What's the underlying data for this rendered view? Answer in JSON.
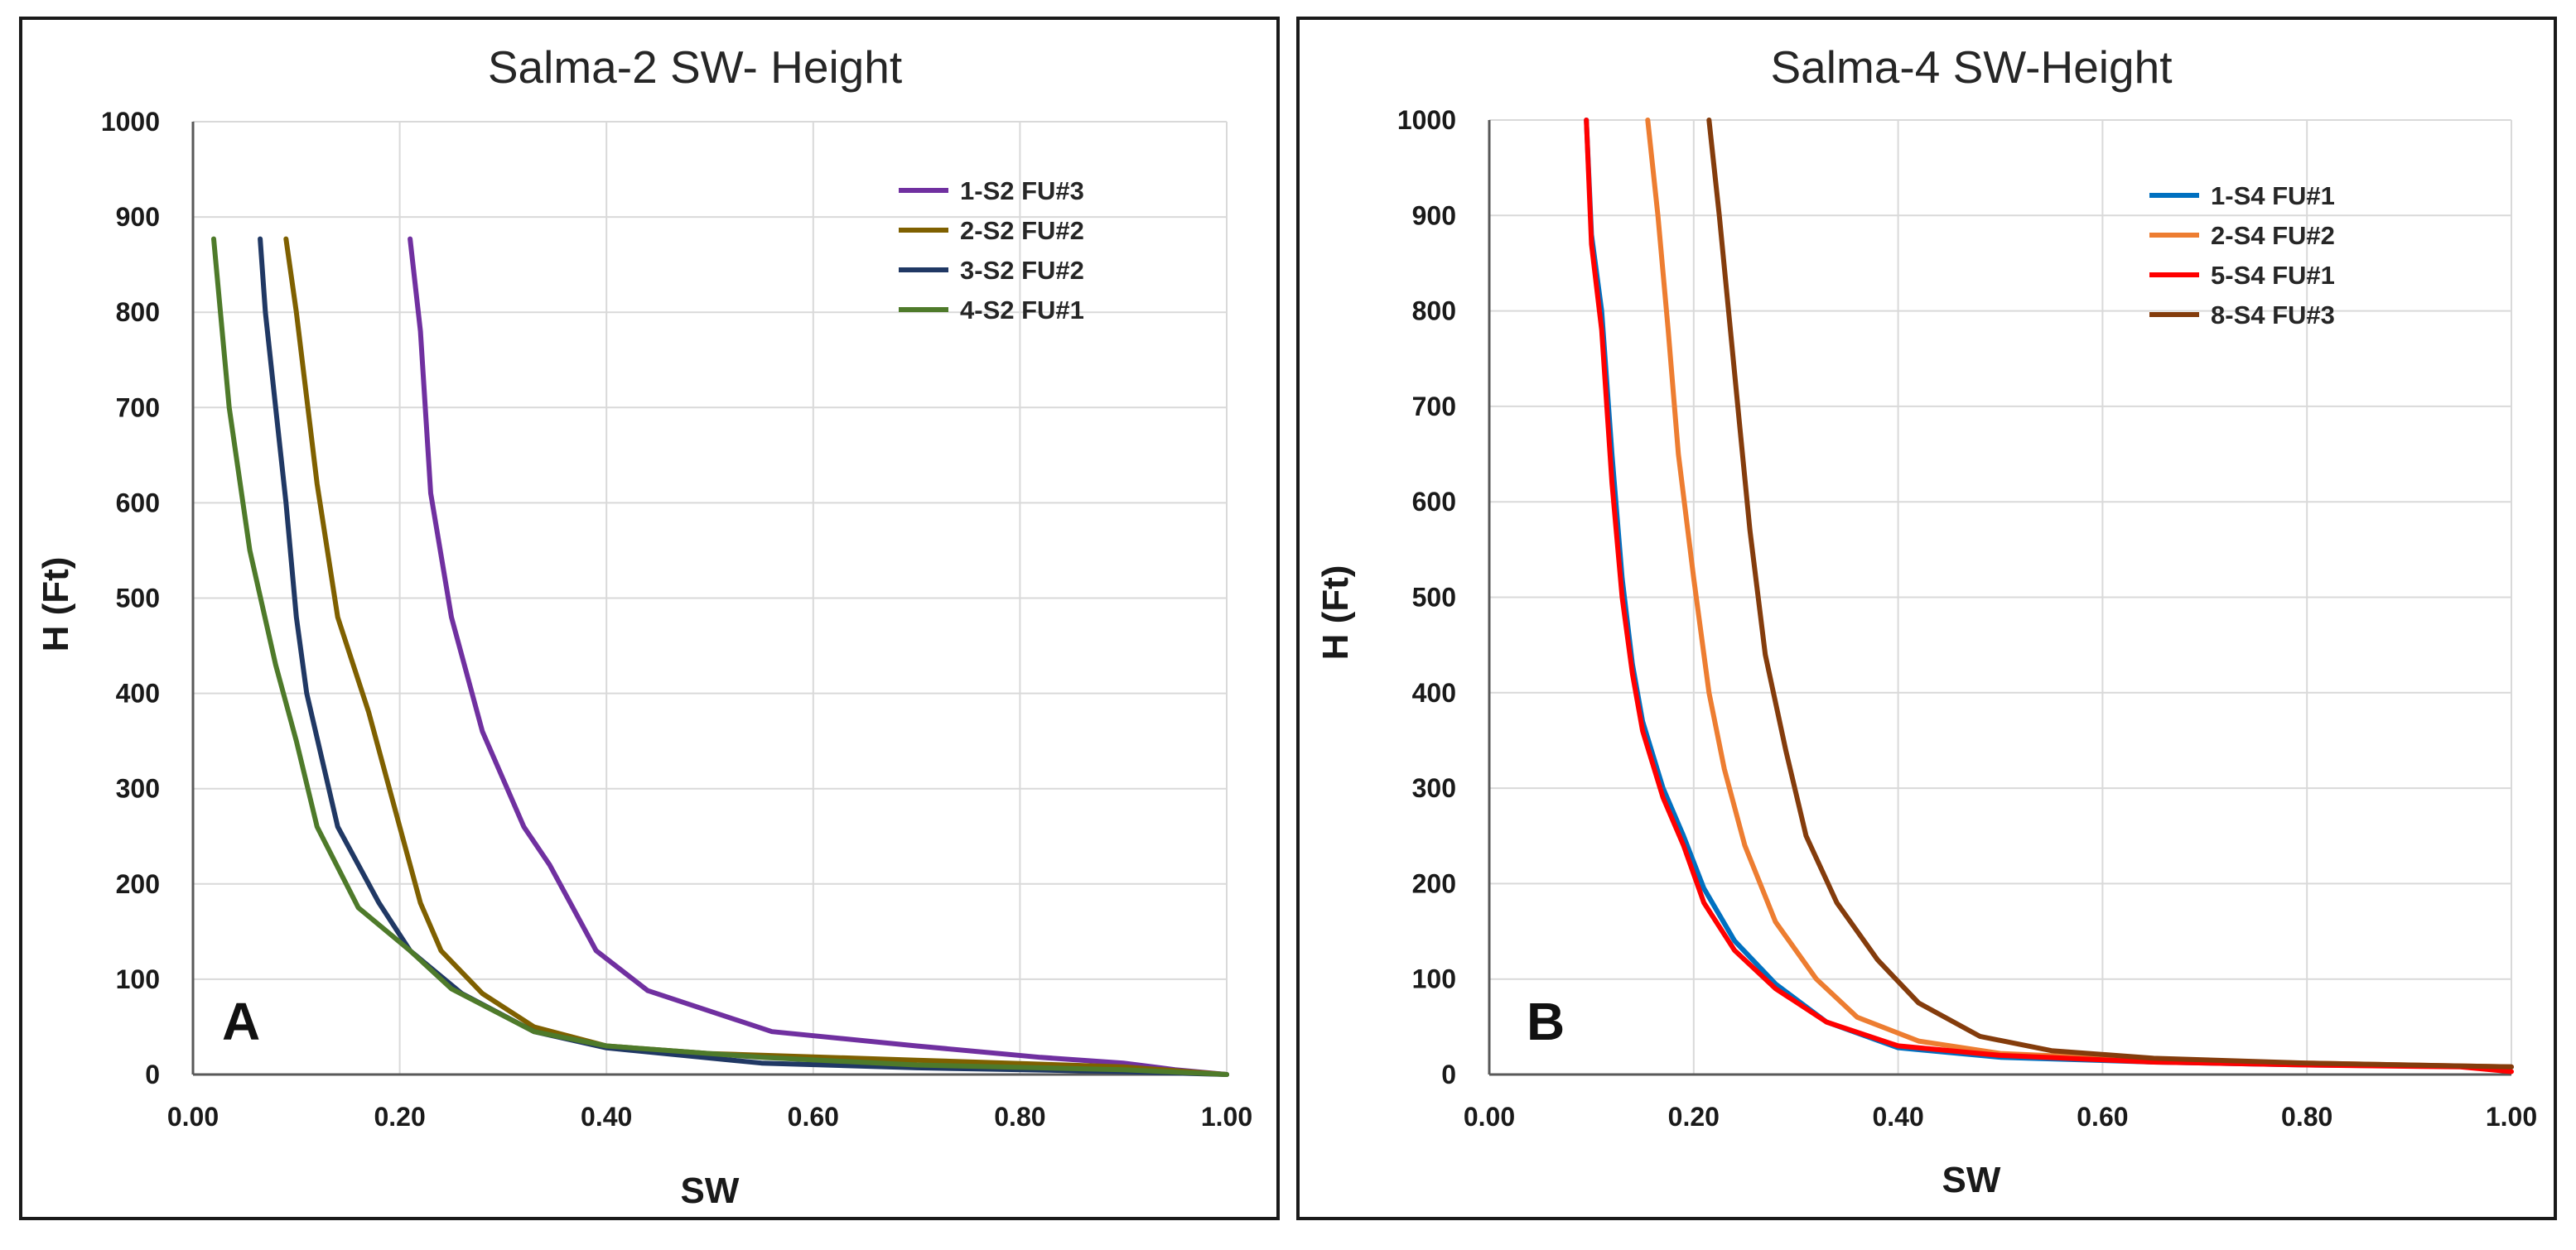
{
  "chart_data": [
    {
      "type": "line",
      "title": "Salma-2 SW- Height",
      "xlabel": "SW",
      "ylabel": "H (Ft)",
      "panel_label": "A",
      "xlim": [
        0,
        1
      ],
      "ylim": [
        0,
        1000
      ],
      "xticks": [
        "0.00",
        "0.20",
        "0.40",
        "0.60",
        "0.80",
        "1.00"
      ],
      "yticks": [
        "0",
        "100",
        "200",
        "300",
        "400",
        "500",
        "600",
        "700",
        "800",
        "900",
        "1000"
      ],
      "grid": true,
      "legend_position": "top-right",
      "series": [
        {
          "name": "1-S2 FU#3",
          "color": "#7030a0",
          "points": [
            [
              0.21,
              877
            ],
            [
              0.22,
              780
            ],
            [
              0.23,
              610
            ],
            [
              0.25,
              480
            ],
            [
              0.26,
              440
            ],
            [
              0.28,
              360
            ],
            [
              0.32,
              260
            ],
            [
              0.345,
              220
            ],
            [
              0.37,
              170
            ],
            [
              0.39,
              130
            ],
            [
              0.44,
              88
            ],
            [
              0.56,
              45
            ],
            [
              0.7,
              30
            ],
            [
              0.82,
              18
            ],
            [
              0.9,
              12
            ],
            [
              0.95,
              5
            ],
            [
              1.0,
              0
            ]
          ]
        },
        {
          "name": "2-S2 FU#2",
          "color": "#7f6000",
          "points": [
            [
              0.09,
              877
            ],
            [
              0.1,
              800
            ],
            [
              0.12,
              620
            ],
            [
              0.14,
              480
            ],
            [
              0.17,
              380
            ],
            [
              0.2,
              260
            ],
            [
              0.22,
              180
            ],
            [
              0.24,
              130
            ],
            [
              0.28,
              85
            ],
            [
              0.33,
              50
            ],
            [
              0.4,
              30
            ],
            [
              0.5,
              22
            ],
            [
              0.7,
              15
            ],
            [
              0.9,
              8
            ],
            [
              1.0,
              0
            ]
          ]
        },
        {
          "name": "3-S2 FU#2",
          "color": "#203864",
          "points": [
            [
              0.065,
              877
            ],
            [
              0.07,
              800
            ],
            [
              0.08,
              700
            ],
            [
              0.09,
              600
            ],
            [
              0.1,
              480
            ],
            [
              0.11,
              400
            ],
            [
              0.14,
              260
            ],
            [
              0.18,
              180
            ],
            [
              0.21,
              130
            ],
            [
              0.26,
              85
            ],
            [
              0.33,
              45
            ],
            [
              0.4,
              28
            ],
            [
              0.55,
              12
            ],
            [
              0.7,
              7
            ],
            [
              0.9,
              3
            ],
            [
              1.0,
              0
            ]
          ]
        },
        {
          "name": "4-S2 FU#1",
          "color": "#4e7a2a",
          "points": [
            [
              0.02,
              877
            ],
            [
              0.035,
              700
            ],
            [
              0.055,
              550
            ],
            [
              0.08,
              430
            ],
            [
              0.1,
              350
            ],
            [
              0.12,
              260
            ],
            [
              0.16,
              175
            ],
            [
              0.21,
              130
            ],
            [
              0.25,
              90
            ],
            [
              0.33,
              45
            ],
            [
              0.4,
              30
            ],
            [
              0.55,
              18
            ],
            [
              0.7,
              10
            ],
            [
              0.9,
              5
            ],
            [
              1.0,
              0
            ]
          ]
        }
      ]
    },
    {
      "type": "line",
      "title": "Salma-4 SW-Height",
      "xlabel": "SW",
      "ylabel": "H (Ft)",
      "panel_label": "B",
      "xlim": [
        0,
        1
      ],
      "ylim": [
        0,
        1000
      ],
      "xticks": [
        "0.00",
        "0.20",
        "0.40",
        "0.60",
        "0.80",
        "1.00"
      ],
      "yticks": [
        "0",
        "100",
        "200",
        "300",
        "400",
        "500",
        "600",
        "700",
        "800",
        "900",
        "1000"
      ],
      "grid": true,
      "legend_position": "top-right",
      "series": [
        {
          "name": "1-S4 FU#1",
          "color": "#0070c0",
          "points": [
            [
              0.095,
              1000
            ],
            [
              0.1,
              880
            ],
            [
              0.11,
              800
            ],
            [
              0.12,
              650
            ],
            [
              0.13,
              520
            ],
            [
              0.14,
              430
            ],
            [
              0.15,
              370
            ],
            [
              0.17,
              300
            ],
            [
              0.19,
              250
            ],
            [
              0.21,
              195
            ],
            [
              0.24,
              140
            ],
            [
              0.28,
              95
            ],
            [
              0.33,
              55
            ],
            [
              0.4,
              28
            ],
            [
              0.5,
              18
            ],
            [
              0.65,
              13
            ],
            [
              0.8,
              10
            ],
            [
              1.0,
              8
            ]
          ]
        },
        {
          "name": "2-S4 FU#2",
          "color": "#ed7d31",
          "points": [
            [
              0.155,
              1000
            ],
            [
              0.165,
              900
            ],
            [
              0.175,
              780
            ],
            [
              0.185,
              650
            ],
            [
              0.2,
              520
            ],
            [
              0.215,
              400
            ],
            [
              0.23,
              320
            ],
            [
              0.25,
              240
            ],
            [
              0.28,
              160
            ],
            [
              0.32,
              100
            ],
            [
              0.36,
              60
            ],
            [
              0.42,
              35
            ],
            [
              0.5,
              22
            ],
            [
              0.65,
              15
            ],
            [
              0.8,
              12
            ],
            [
              1.0,
              8
            ]
          ]
        },
        {
          "name": "5-S4 FU#1",
          "color": "#ff0000",
          "points": [
            [
              0.095,
              1000
            ],
            [
              0.1,
              870
            ],
            [
              0.11,
              780
            ],
            [
              0.12,
              620
            ],
            [
              0.13,
              500
            ],
            [
              0.14,
              420
            ],
            [
              0.15,
              360
            ],
            [
              0.17,
              290
            ],
            [
              0.19,
              240
            ],
            [
              0.21,
              180
            ],
            [
              0.24,
              130
            ],
            [
              0.28,
              90
            ],
            [
              0.33,
              55
            ],
            [
              0.4,
              30
            ],
            [
              0.5,
              20
            ],
            [
              0.65,
              13
            ],
            [
              0.8,
              10
            ],
            [
              0.95,
              8
            ],
            [
              1.0,
              3
            ]
          ]
        },
        {
          "name": "8-S4 FU#3",
          "color": "#843c0c",
          "points": [
            [
              0.215,
              1000
            ],
            [
              0.225,
              900
            ],
            [
              0.235,
              790
            ],
            [
              0.245,
              680
            ],
            [
              0.255,
              570
            ],
            [
              0.27,
              440
            ],
            [
              0.29,
              340
            ],
            [
              0.31,
              250
            ],
            [
              0.34,
              180
            ],
            [
              0.38,
              120
            ],
            [
              0.42,
              75
            ],
            [
              0.48,
              40
            ],
            [
              0.55,
              25
            ],
            [
              0.65,
              17
            ],
            [
              0.8,
              12
            ],
            [
              1.0,
              8
            ]
          ]
        }
      ]
    }
  ]
}
